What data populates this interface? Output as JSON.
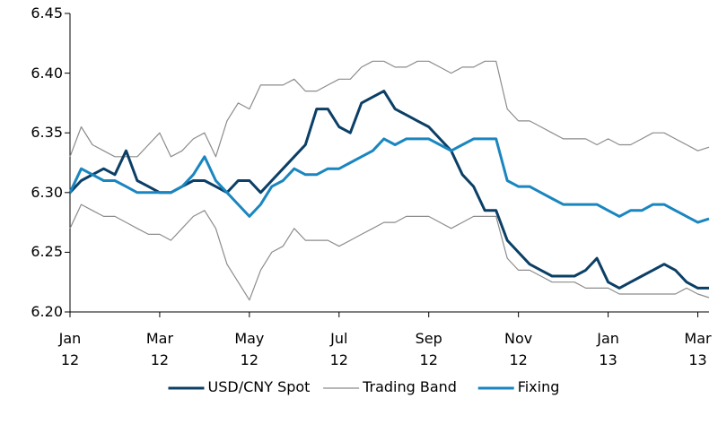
{
  "chart_data": {
    "type": "line",
    "x": [
      0,
      0.25,
      0.5,
      0.75,
      1,
      1.25,
      1.5,
      1.75,
      2,
      2.25,
      2.5,
      2.75,
      3,
      3.25,
      3.5,
      3.75,
      4,
      4.25,
      4.5,
      4.75,
      5,
      5.25,
      5.5,
      5.75,
      6,
      6.25,
      6.5,
      6.75,
      7,
      7.25,
      7.5,
      7.75,
      8,
      8.25,
      8.5,
      8.75,
      9,
      9.25,
      9.5,
      9.75,
      10,
      10.25,
      10.5,
      10.75,
      11,
      11.25,
      11.5,
      11.75,
      12,
      12.25,
      12.5,
      12.75,
      13,
      13.25,
      13.5,
      13.75,
      14,
      14.25
    ],
    "series": [
      {
        "name": "USD/CNY Spot",
        "color": "#0b3f66",
        "width": 3,
        "values": [
          6.3,
          6.31,
          6.315,
          6.32,
          6.315,
          6.335,
          6.31,
          6.305,
          6.3,
          6.3,
          6.305,
          6.31,
          6.31,
          6.305,
          6.3,
          6.31,
          6.31,
          6.3,
          6.31,
          6.32,
          6.33,
          6.34,
          6.37,
          6.37,
          6.355,
          6.35,
          6.375,
          6.38,
          6.385,
          6.37,
          6.365,
          6.36,
          6.355,
          6.345,
          6.335,
          6.315,
          6.305,
          6.285,
          6.285,
          6.26,
          6.25,
          6.24,
          6.235,
          6.23,
          6.23,
          6.23,
          6.235,
          6.245,
          6.225,
          6.22,
          6.225,
          6.23,
          6.235,
          6.24,
          6.235,
          6.225,
          6.22,
          6.22
        ]
      },
      {
        "name": "Trading Band",
        "color": "#8c8c8c",
        "width": 1.2,
        "values": [
          6.33,
          6.355,
          6.34,
          6.335,
          6.33,
          6.33,
          6.33,
          6.34,
          6.35,
          6.33,
          6.335,
          6.345,
          6.35,
          6.33,
          6.36,
          6.375,
          6.37,
          6.39,
          6.39,
          6.39,
          6.395,
          6.385,
          6.385,
          6.39,
          6.395,
          6.395,
          6.405,
          6.41,
          6.41,
          6.405,
          6.405,
          6.41,
          6.41,
          6.405,
          6.4,
          6.405,
          6.405,
          6.41,
          6.41,
          6.37,
          6.36,
          6.36,
          6.355,
          6.35,
          6.345,
          6.345,
          6.345,
          6.34,
          6.345,
          6.34,
          6.34,
          6.345,
          6.35,
          6.35,
          6.345,
          6.34,
          6.335,
          6.338
        ],
        "lower": [
          6.27,
          6.29,
          6.285,
          6.28,
          6.28,
          6.275,
          6.27,
          6.265,
          6.265,
          6.26,
          6.27,
          6.28,
          6.285,
          6.27,
          6.24,
          6.225,
          6.21,
          6.235,
          6.25,
          6.255,
          6.27,
          6.26,
          6.26,
          6.26,
          6.255,
          6.26,
          6.265,
          6.27,
          6.275,
          6.275,
          6.28,
          6.28,
          6.28,
          6.275,
          6.27,
          6.275,
          6.28,
          6.28,
          6.28,
          6.245,
          6.235,
          6.235,
          6.23,
          6.225,
          6.225,
          6.225,
          6.22,
          6.22,
          6.22,
          6.215,
          6.215,
          6.215,
          6.215,
          6.215,
          6.215,
          6.22,
          6.215,
          6.212
        ]
      },
      {
        "name": "Fixing",
        "color": "#1a86c0",
        "width": 3,
        "values": [
          6.3,
          6.32,
          6.315,
          6.31,
          6.31,
          6.305,
          6.3,
          6.3,
          6.3,
          6.3,
          6.305,
          6.315,
          6.33,
          6.31,
          6.3,
          6.29,
          6.28,
          6.29,
          6.305,
          6.31,
          6.32,
          6.315,
          6.315,
          6.32,
          6.32,
          6.325,
          6.33,
          6.335,
          6.345,
          6.34,
          6.345,
          6.345,
          6.345,
          6.34,
          6.335,
          6.34,
          6.345,
          6.345,
          6.345,
          6.31,
          6.305,
          6.305,
          6.3,
          6.295,
          6.29,
          6.29,
          6.29,
          6.29,
          6.285,
          6.28,
          6.285,
          6.285,
          6.29,
          6.29,
          6.285,
          6.28,
          6.275,
          6.278
        ]
      }
    ],
    "xlim": [
      0,
      14.25
    ],
    "xticks": [
      {
        "value": 0,
        "label": "Jan\n12"
      },
      {
        "value": 2,
        "label": "Mar\n12"
      },
      {
        "value": 4,
        "label": "May\n12"
      },
      {
        "value": 6,
        "label": "Jul\n12"
      },
      {
        "value": 8,
        "label": "Sep\n12"
      },
      {
        "value": 10,
        "label": "Nov\n12"
      },
      {
        "value": 12,
        "label": "Jan\n13"
      },
      {
        "value": 14,
        "label": "Mar\n13"
      }
    ],
    "ylim": [
      6.2,
      6.45
    ],
    "yticks": [
      {
        "value": 6.2,
        "label": "6.20"
      },
      6.25,
      {
        "value": 6.3,
        "label": "6.30"
      },
      6.35,
      {
        "value": 6.4,
        "label": "6.40"
      },
      6.45
    ],
    "legend": "bottom"
  }
}
